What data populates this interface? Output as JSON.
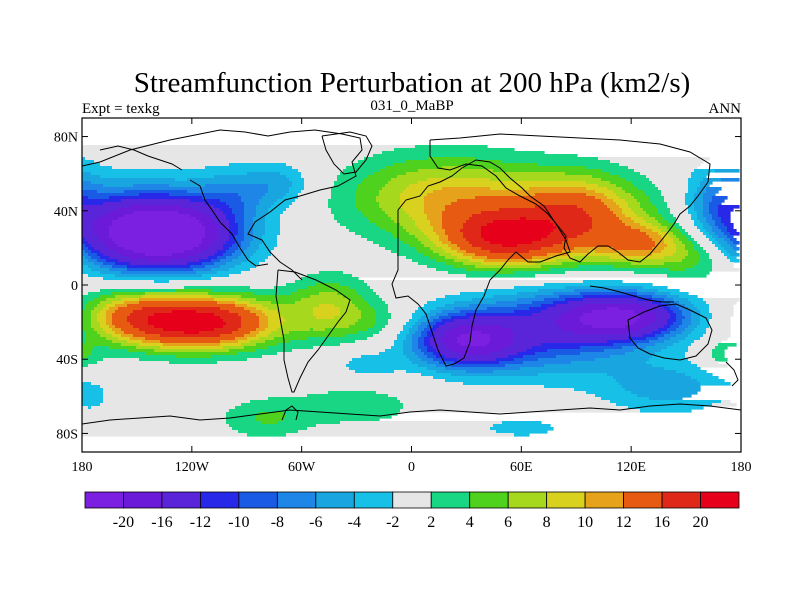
{
  "chart_data": {
    "type": "heatmap",
    "title": "Streamfunction Perturbation at 200 hPa (km2/s)",
    "left_label": "Expt = texkg",
    "center_label": "031_0_MaBP",
    "right_label": "ANN",
    "x_ticks": [
      {
        "value": -180,
        "label": "180"
      },
      {
        "value": -120,
        "label": "120W"
      },
      {
        "value": -60,
        "label": "60W"
      },
      {
        "value": 0,
        "label": "0"
      },
      {
        "value": 60,
        "label": "60E"
      },
      {
        "value": 120,
        "label": "120E"
      },
      {
        "value": 180,
        "label": "180"
      }
    ],
    "y_ticks": [
      {
        "value": 80,
        "label": "80N"
      },
      {
        "value": 40,
        "label": "40N"
      },
      {
        "value": 0,
        "label": "0"
      },
      {
        "value": -40,
        "label": "40S"
      },
      {
        "value": -80,
        "label": "80S"
      }
    ],
    "xlim": [
      -180,
      180
    ],
    "ylim": [
      -90,
      90
    ],
    "levels": [
      -20,
      -16,
      -12,
      -10,
      -8,
      -6,
      -4,
      -2,
      2,
      4,
      6,
      8,
      10,
      12,
      16,
      20
    ],
    "colors": [
      "#7b1fe0",
      "#6a1ad8",
      "#5a25d8",
      "#2828e8",
      "#1a5be6",
      "#1e86e6",
      "#19a6e0",
      "#16c0e6",
      "#e6e6e6",
      "#18d684",
      "#4ed21e",
      "#a6d81e",
      "#d8d21e",
      "#e6a21a",
      "#e65a12",
      "#e02818",
      "#e6001a"
    ],
    "colorbar_labels": [
      "-20",
      "-16",
      "-12",
      "-10",
      "-8",
      "-6",
      "-4",
      "-2",
      "2",
      "4",
      "6",
      "8",
      "10",
      "12",
      "16",
      "20"
    ],
    "features": [
      {
        "lon": -135,
        "lat": 27,
        "amp": -23,
        "wlon": 28,
        "wlat": 13
      },
      {
        "lon": -150,
        "lat": 33,
        "amp": -8,
        "wlon": 28,
        "wlat": 16
      },
      {
        "lon": -95,
        "lat": 50,
        "amp": -5,
        "wlon": 16,
        "wlat": 10
      },
      {
        "lon": -118,
        "lat": -20,
        "amp": 23,
        "wlon": 30,
        "wlat": 10
      },
      {
        "lon": -155,
        "lat": -15,
        "amp": 6,
        "wlon": 18,
        "wlat": 10
      },
      {
        "lon": -45,
        "lat": -12,
        "amp": 7,
        "wlon": 16,
        "wlat": 12
      },
      {
        "lon": -20,
        "lat": -20,
        "amp": 3,
        "wlon": 15,
        "wlat": 8
      },
      {
        "lon": -25,
        "lat": -43,
        "amp": -3,
        "wlon": 14,
        "wlat": 6
      },
      {
        "lon": 50,
        "lat": 25,
        "amp": 17,
        "wlon": 24,
        "wlat": 11
      },
      {
        "lon": 20,
        "lat": 47,
        "amp": 10,
        "wlon": 38,
        "wlat": 16
      },
      {
        "lon": 95,
        "lat": 35,
        "amp": 8,
        "wlon": 30,
        "wlat": 16
      },
      {
        "lon": 125,
        "lat": 22,
        "amp": 9,
        "wlon": 16,
        "wlat": 8
      },
      {
        "lon": 155,
        "lat": 15,
        "amp": 5,
        "wlon": 16,
        "wlat": 10
      },
      {
        "lon": 30,
        "lat": -30,
        "amp": -17,
        "wlon": 20,
        "wlat": 10
      },
      {
        "lon": 115,
        "lat": -17,
        "amp": -18,
        "wlon": 25,
        "wlat": 9
      },
      {
        "lon": 75,
        "lat": -25,
        "amp": -10,
        "wlon": 35,
        "wlat": 16
      },
      {
        "lon": 140,
        "lat": -55,
        "amp": -5,
        "wlon": 25,
        "wlat": 10
      },
      {
        "lon": 175,
        "lat": -38,
        "amp": 5,
        "wlon": 10,
        "wlat": 6
      },
      {
        "lon": -30,
        "lat": -65,
        "amp": 3.5,
        "wlon": 24,
        "wlat": 8
      },
      {
        "lon": -80,
        "lat": -72,
        "amp": 4,
        "wlon": 18,
        "wlat": 8
      },
      {
        "lon": -70,
        "lat": 55,
        "amp": -4,
        "wlon": 12,
        "wlat": 8
      },
      {
        "lon": -175,
        "lat": -60,
        "amp": -3,
        "wlon": 6,
        "wlat": 5
      },
      {
        "lon": 170,
        "lat": 45,
        "amp": -7,
        "wlon": 14,
        "wlat": 15
      },
      {
        "lon": 60,
        "lat": -77,
        "amp": -3,
        "wlon": 18,
        "wlat": 4
      },
      {
        "lon": 90,
        "lat": 40,
        "amp": 6,
        "wlon": 20,
        "wlat": 14
      }
    ]
  }
}
